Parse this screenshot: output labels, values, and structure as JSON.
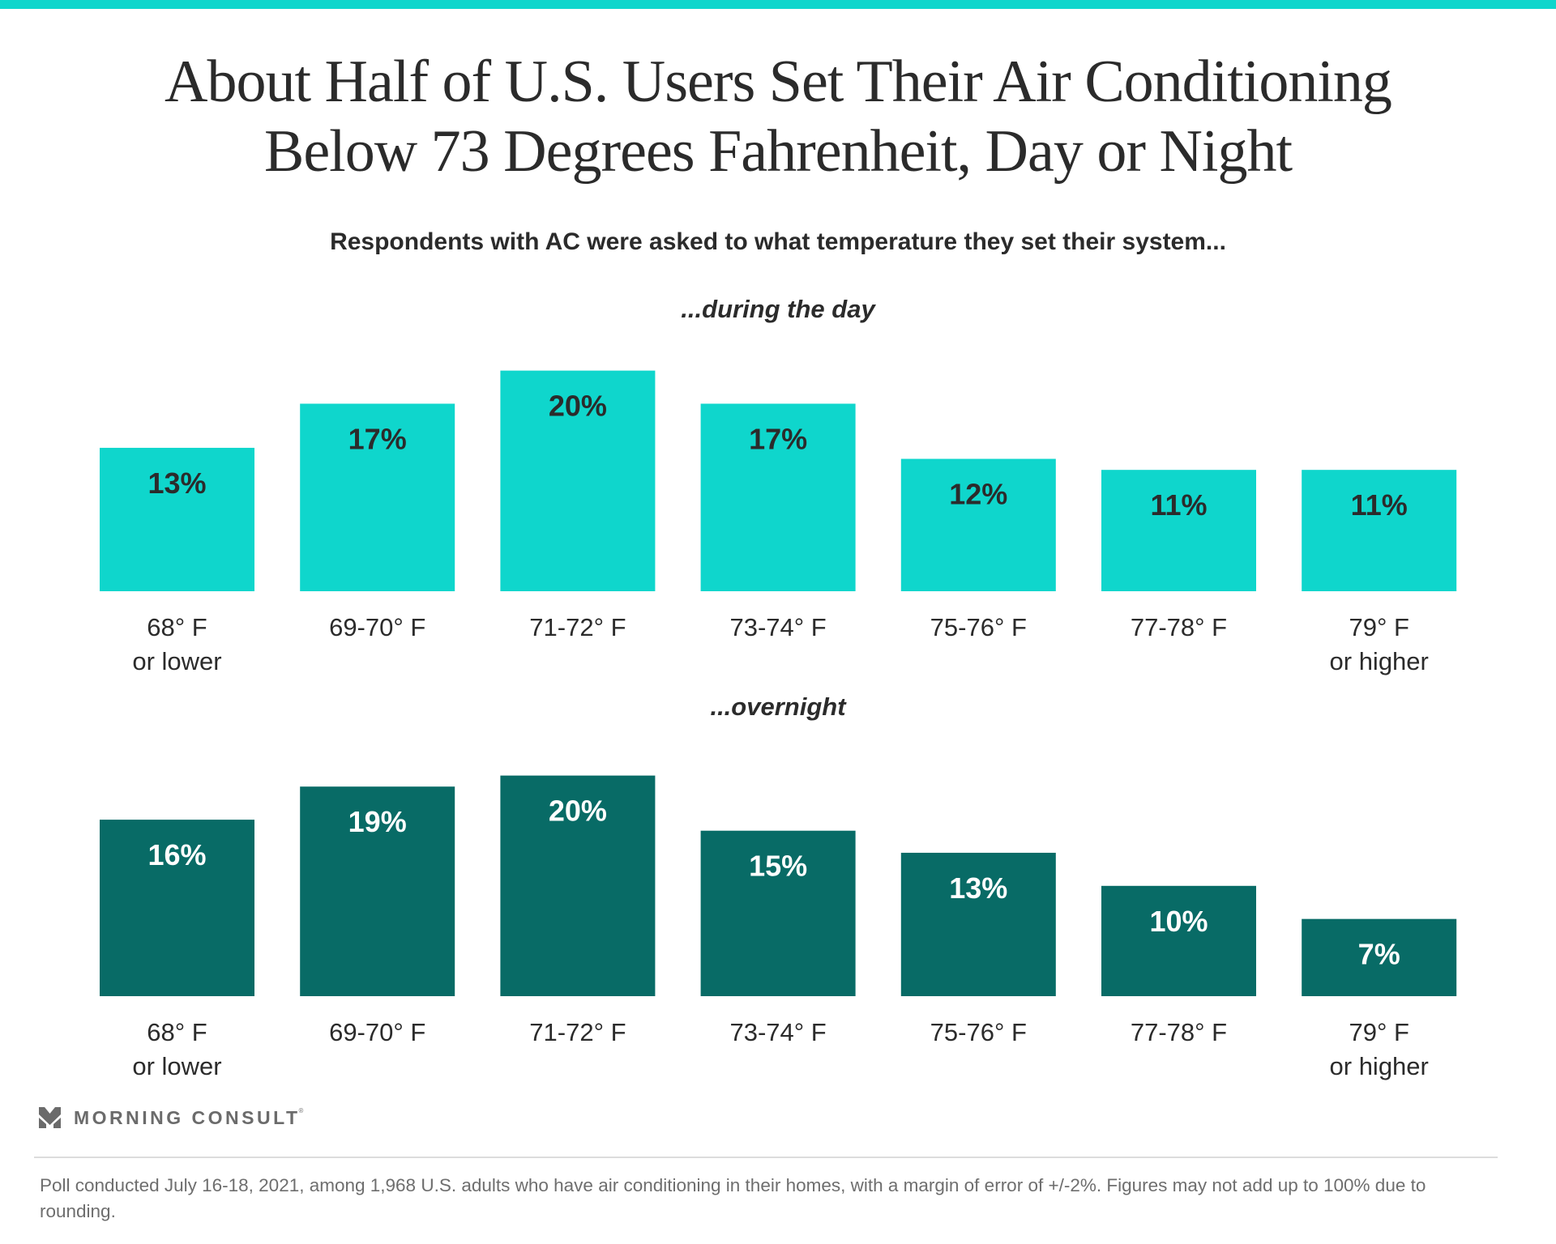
{
  "colors": {
    "accent": "#0fd6cc",
    "day_bar": "#0fd6cc",
    "night_bar": "#086b66",
    "text_dark": "#2b2b2b",
    "day_value_text": "#2b2b2b",
    "night_value_text": "#ffffff"
  },
  "header": {
    "title_line1": "About Half of U.S. Users Set Their Air Conditioning",
    "title_line2": "Below 73 Degrees Fahrenheit, Day or Night",
    "subtitle": "Respondents with AC were asked to what temperature they set their system..."
  },
  "chart_data": [
    {
      "type": "bar",
      "title": "...during the day",
      "categories": [
        [
          "68° F",
          "or lower"
        ],
        [
          "69-70° F"
        ],
        [
          "71-72° F"
        ],
        [
          "73-74° F"
        ],
        [
          "75-76° F"
        ],
        [
          "77-78° F"
        ],
        [
          "79° F",
          "or higher"
        ]
      ],
      "values": [
        13,
        17,
        20,
        17,
        12,
        11,
        11
      ],
      "value_labels": [
        "13%",
        "17%",
        "20%",
        "17%",
        "12%",
        "11%",
        "11%"
      ],
      "unit": "%",
      "xlabel": "",
      "ylabel": "",
      "ylim": [
        0,
        20
      ],
      "grid": false,
      "legend": "none"
    },
    {
      "type": "bar",
      "title": "...overnight",
      "categories": [
        [
          "68° F",
          "or lower"
        ],
        [
          "69-70° F"
        ],
        [
          "71-72° F"
        ],
        [
          "73-74° F"
        ],
        [
          "75-76° F"
        ],
        [
          "77-78° F"
        ],
        [
          "79° F",
          "or higher"
        ]
      ],
      "values": [
        16,
        19,
        20,
        15,
        13,
        10,
        7
      ],
      "value_labels": [
        "16%",
        "19%",
        "20%",
        "15%",
        "13%",
        "10%",
        "7%"
      ],
      "unit": "%",
      "xlabel": "",
      "ylabel": "",
      "ylim": [
        0,
        20
      ],
      "grid": false,
      "legend": "none"
    }
  ],
  "branding": {
    "logo_icon": "morning-consult-chevron-icon",
    "logo_text": "MORNING CONSULT",
    "logo_mark": "®"
  },
  "footer": {
    "note": "Poll conducted July 16-18, 2021, among 1,968 U.S. adults who have air conditioning in their homes, with a margin of error of +/-2%. Figures may not add up to 100% due to rounding."
  }
}
